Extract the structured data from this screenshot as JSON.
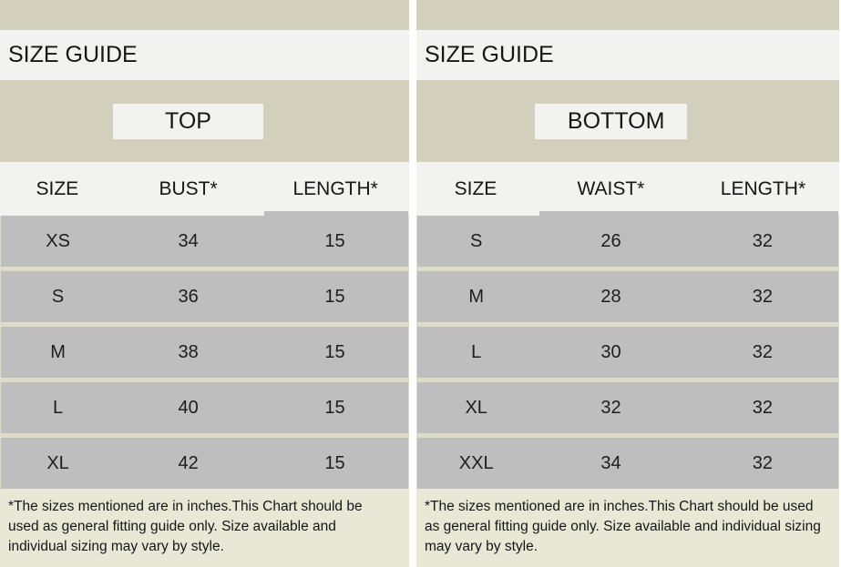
{
  "colors": {
    "band_khaki": "#d2d0bc",
    "light_row": "#f2f2f0",
    "data_row_gray": "#bebebe",
    "row_gap": "#dddcc9",
    "footnote_bg": "#e9e7d6",
    "text": "#161616"
  },
  "panels": [
    {
      "size_guide_title": "SIZE GUIDE",
      "category_label": "TOP",
      "columns": [
        "SIZE",
        "BUST*",
        "LENGTH*"
      ],
      "rows": [
        [
          "XS",
          "34",
          "15"
        ],
        [
          "S",
          "36",
          "15"
        ],
        [
          "M",
          "38",
          "15"
        ],
        [
          "L",
          "40",
          "15"
        ],
        [
          "XL",
          "42",
          "15"
        ]
      ],
      "footnote_lines": [
        "*The sizes mentioned are in inches.This Chart should be",
        "used as general fitting guide only. Size available and",
        "individual sizing may vary by style."
      ]
    },
    {
      "size_guide_title": "SIZE GUIDE",
      "category_label": "BOTTOM",
      "columns": [
        "SIZE",
        "WAIST*",
        "LENGTH*"
      ],
      "rows": [
        [
          "S",
          "26",
          "32"
        ],
        [
          "M",
          "28",
          "32"
        ],
        [
          "L",
          "30",
          "32"
        ],
        [
          "XL",
          "32",
          "32"
        ],
        [
          "XXL",
          "34",
          "32"
        ]
      ],
      "footnote_lines": [
        "*The sizes mentioned are in inches.This Chart should be used",
        "as general fitting guide only. Size available and individual sizing",
        "may vary by style."
      ]
    }
  ]
}
